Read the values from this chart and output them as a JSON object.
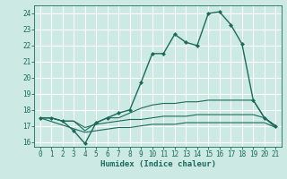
{
  "xlabel": "Humidex (Indice chaleur)",
  "ylabel": "",
  "xlim": [
    -0.5,
    21.5
  ],
  "ylim": [
    15.7,
    24.5
  ],
  "yticks": [
    16,
    17,
    18,
    19,
    20,
    21,
    22,
    23,
    24
  ],
  "xticks": [
    0,
    1,
    2,
    3,
    4,
    5,
    6,
    7,
    8,
    9,
    10,
    11,
    12,
    13,
    14,
    15,
    16,
    17,
    18,
    19,
    20,
    21
  ],
  "bg_color": "#cce9e4",
  "line_color": "#1a6b5a",
  "grid_color": "#ffffff",
  "line1": {
    "x": [
      0,
      1,
      2,
      3,
      4,
      5,
      6,
      7,
      8,
      9,
      10,
      11,
      12,
      13,
      14,
      15,
      16,
      17,
      18,
      19,
      20,
      21
    ],
    "y": [
      17.5,
      17.5,
      17.3,
      16.7,
      15.9,
      17.2,
      17.5,
      17.8,
      18.0,
      19.7,
      21.5,
      21.5,
      22.7,
      22.2,
      22.0,
      24.0,
      24.1,
      23.3,
      22.1,
      18.6,
      17.5,
      17.0
    ]
  },
  "line2": {
    "x": [
      0,
      1,
      2,
      3,
      4,
      5,
      6,
      7,
      8,
      9,
      10,
      11,
      12,
      13,
      14,
      15,
      16,
      17,
      18,
      19,
      20,
      21
    ],
    "y": [
      17.5,
      17.5,
      17.3,
      17.3,
      16.7,
      17.2,
      17.5,
      17.5,
      17.8,
      18.1,
      18.3,
      18.4,
      18.4,
      18.5,
      18.5,
      18.6,
      18.6,
      18.6,
      18.6,
      18.6,
      17.5,
      16.9
    ]
  },
  "line3": {
    "x": [
      0,
      1,
      2,
      3,
      4,
      5,
      6,
      7,
      8,
      9,
      10,
      11,
      12,
      13,
      14,
      15,
      16,
      17,
      18,
      19,
      20,
      21
    ],
    "y": [
      17.5,
      17.5,
      17.3,
      17.3,
      16.9,
      17.1,
      17.2,
      17.3,
      17.4,
      17.4,
      17.5,
      17.6,
      17.6,
      17.6,
      17.7,
      17.7,
      17.7,
      17.7,
      17.7,
      17.7,
      17.5,
      17.0
    ]
  },
  "line4": {
    "x": [
      0,
      4,
      5,
      6,
      7,
      8,
      9,
      10,
      11,
      12,
      13,
      14,
      15,
      16,
      17,
      18,
      19,
      20,
      21
    ],
    "y": [
      17.5,
      16.6,
      16.7,
      16.8,
      16.9,
      16.9,
      17.0,
      17.1,
      17.1,
      17.1,
      17.2,
      17.2,
      17.2,
      17.2,
      17.2,
      17.2,
      17.2,
      17.2,
      16.9
    ]
  }
}
